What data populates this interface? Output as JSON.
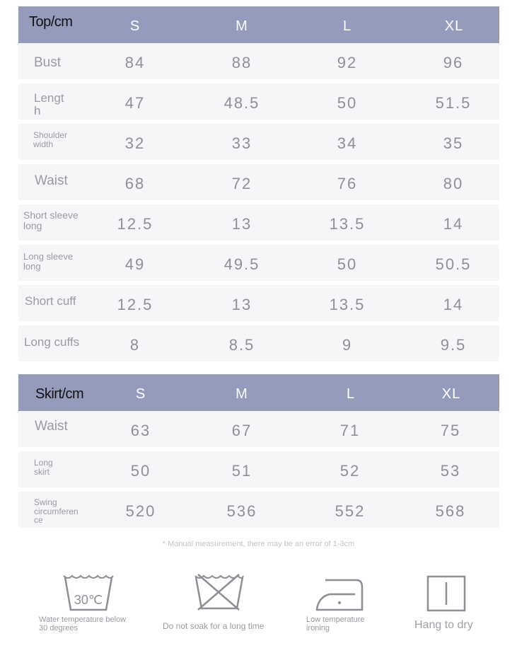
{
  "top_table": {
    "title": "Top/cm",
    "sizes": [
      "S",
      "M",
      "L",
      "XL"
    ],
    "rows": [
      {
        "label": "Bust",
        "values": [
          "84",
          "88",
          "92",
          "96"
        ]
      },
      {
        "label": "Lengt\nh",
        "values": [
          "47",
          "48.5",
          "50",
          "51.5"
        ]
      },
      {
        "label": "Shoulder\nwidth",
        "values": [
          "32",
          "33",
          "34",
          "35"
        ]
      },
      {
        "label": "Waist",
        "values": [
          "68",
          "72",
          "76",
          "80"
        ]
      },
      {
        "label": "Short sleeve\nlong",
        "values": [
          "12.5",
          "13",
          "13.5",
          "14"
        ]
      },
      {
        "label": "Long sleeve\nlong",
        "values": [
          "49",
          "49.5",
          "50",
          "50.5"
        ]
      },
      {
        "label": "Short cuff",
        "values": [
          "12.5",
          "13",
          "13.5",
          "14"
        ]
      },
      {
        "label": "Long cuffs",
        "values": [
          "8",
          "8.5",
          "9",
          "9.5"
        ]
      }
    ]
  },
  "skirt_table": {
    "title": "Skirt/cm",
    "sizes": [
      "S",
      "M",
      "L",
      "XL"
    ],
    "rows": [
      {
        "label": "Waist",
        "values": [
          "63",
          "67",
          "71",
          "75"
        ]
      },
      {
        "label": "Long\nskirt",
        "values": [
          "50",
          "51",
          "52",
          "53"
        ]
      },
      {
        "label": "Swing\ncircumferen\nce",
        "values": [
          "520",
          "536",
          "552",
          "568"
        ]
      }
    ]
  },
  "note": "* Manual measurement, there may be an error of 1-3cm",
  "care": [
    {
      "icon": "wash-30-icon",
      "caption": "Water temperature below\n30 degrees",
      "symbol_text": "30℃"
    },
    {
      "icon": "do-not-soak-icon",
      "caption": "Do not soak for a long time"
    },
    {
      "icon": "low-temp-iron-icon",
      "caption": "Low temperature\nironing"
    },
    {
      "icon": "hang-dry-icon",
      "caption": "Hang to dry"
    }
  ],
  "colors": {
    "header_bg": "#959bbd",
    "row_bg": "#f6f6f8",
    "text": "#8f8f96"
  }
}
